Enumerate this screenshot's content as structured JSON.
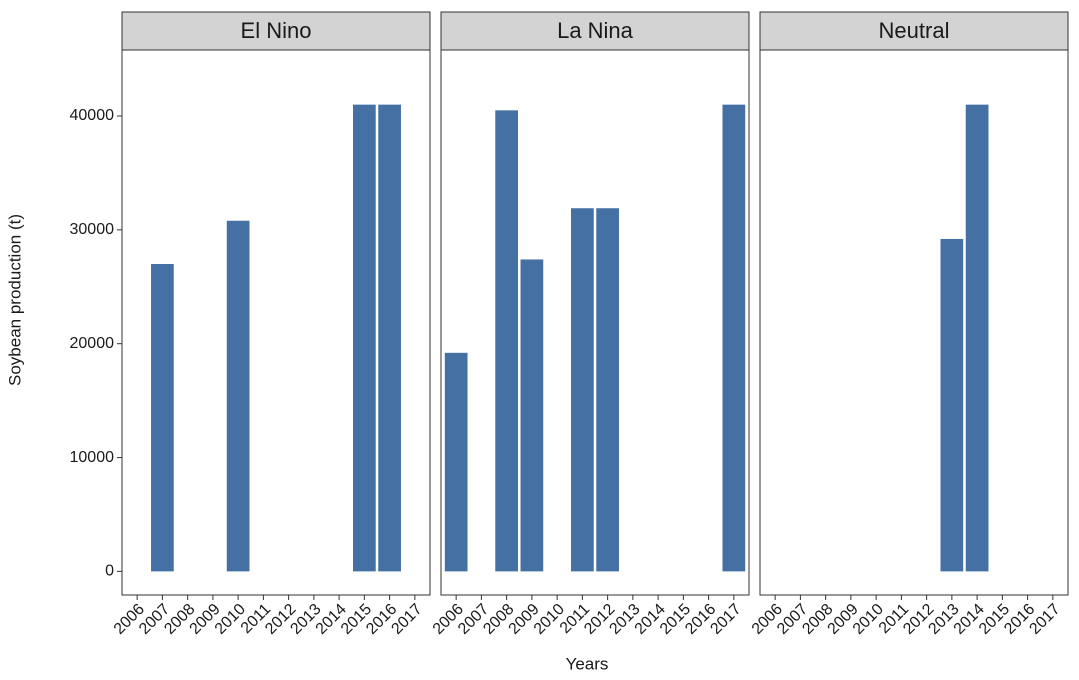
{
  "chart_data": [
    {
      "type": "bar",
      "title": "El Nino",
      "ylabel": "Soybean production (t)",
      "categories": [
        "2006",
        "2007",
        "2008",
        "2009",
        "2010",
        "2011",
        "2012",
        "2013",
        "2014",
        "2015",
        "2016",
        "2017"
      ],
      "values": [
        null,
        27000,
        null,
        null,
        30800,
        null,
        null,
        null,
        null,
        41000,
        41000,
        null
      ],
      "color": "#4470a3",
      "ylim": [
        -2075,
        45800
      ],
      "yticks": [
        0,
        10000,
        20000,
        30000,
        40000
      ]
    },
    {
      "type": "bar",
      "title": "La Nina",
      "xlabel": "Years",
      "categories": [
        "2006",
        "2007",
        "2008",
        "2009",
        "2010",
        "2011",
        "2012",
        "2013",
        "2014",
        "2015",
        "2016",
        "2017"
      ],
      "values": [
        19200,
        null,
        40500,
        27400,
        null,
        31900,
        31900,
        null,
        null,
        null,
        null,
        41000
      ],
      "color": "#4470a3"
    },
    {
      "type": "bar",
      "title": "Neutral",
      "categories": [
        "2006",
        "2007",
        "2008",
        "2009",
        "2010",
        "2011",
        "2012",
        "2013",
        "2014",
        "2015",
        "2016",
        "2017"
      ],
      "values": [
        null,
        null,
        null,
        null,
        null,
        null,
        null,
        29200,
        41000,
        null,
        null,
        null
      ],
      "color": "#4470a3"
    }
  ]
}
